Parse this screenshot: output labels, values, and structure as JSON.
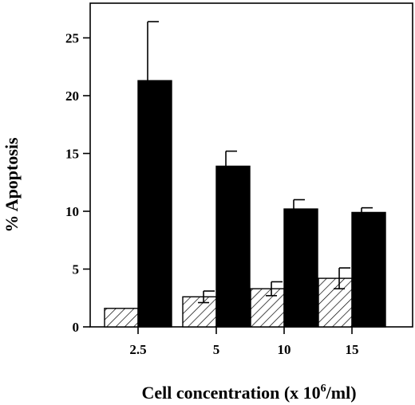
{
  "chart_data": {
    "type": "bar",
    "title": "",
    "xlabel_main": "Cell concentration (x 10",
    "xlabel_sup": "6",
    "xlabel_end": "/ml)",
    "ylabel": "% Apoptosis",
    "categories": [
      "2.5",
      "5",
      "10",
      "15"
    ],
    "ylim": [
      0,
      28
    ],
    "yticks": [
      "0",
      "5",
      "10",
      "15",
      "20",
      "25"
    ],
    "ytick_values": [
      0,
      5,
      10,
      15,
      20,
      25
    ],
    "grid": false,
    "legend": "none",
    "series": [
      {
        "pattern": "hatched",
        "color": "#ffffff",
        "values": [
          1.6,
          2.6,
          3.3,
          4.2
        ],
        "errors": [
          0.0,
          0.5,
          0.6,
          0.9
        ]
      },
      {
        "pattern": "solid",
        "color": "#000000",
        "values": [
          21.3,
          13.9,
          10.2,
          9.9
        ],
        "errors": [
          5.1,
          1.3,
          0.8,
          0.4
        ]
      }
    ]
  }
}
